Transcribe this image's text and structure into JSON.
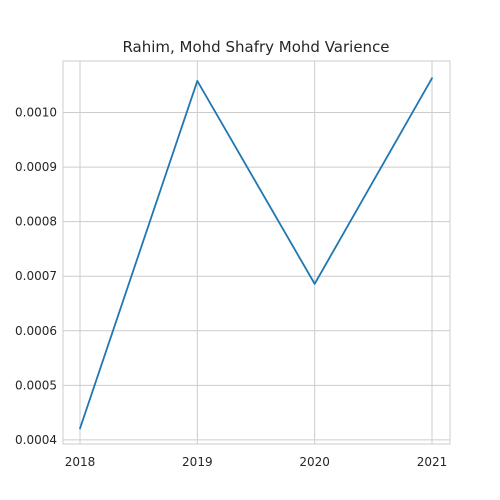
{
  "chart_data": {
    "type": "line",
    "title": "Rahim, Mohd Shafry Mohd Varience",
    "xlabel": "",
    "ylabel": "",
    "x": [
      "2018",
      "2019",
      "2020",
      "2021"
    ],
    "series": [
      {
        "values": [
          0.000421,
          0.001058,
          0.000686,
          0.001063
        ]
      }
    ],
    "yticks": [
      "0.0004",
      "0.0005",
      "0.0006",
      "0.0007",
      "0.0008",
      "0.0009",
      "0.0010"
    ],
    "ylim": [
      0.0003925,
      0.0010945
    ],
    "grid": true,
    "legend": "none",
    "colors": {
      "series": "#1f77b4",
      "grid": "#cccccc",
      "text": "#262626"
    }
  }
}
